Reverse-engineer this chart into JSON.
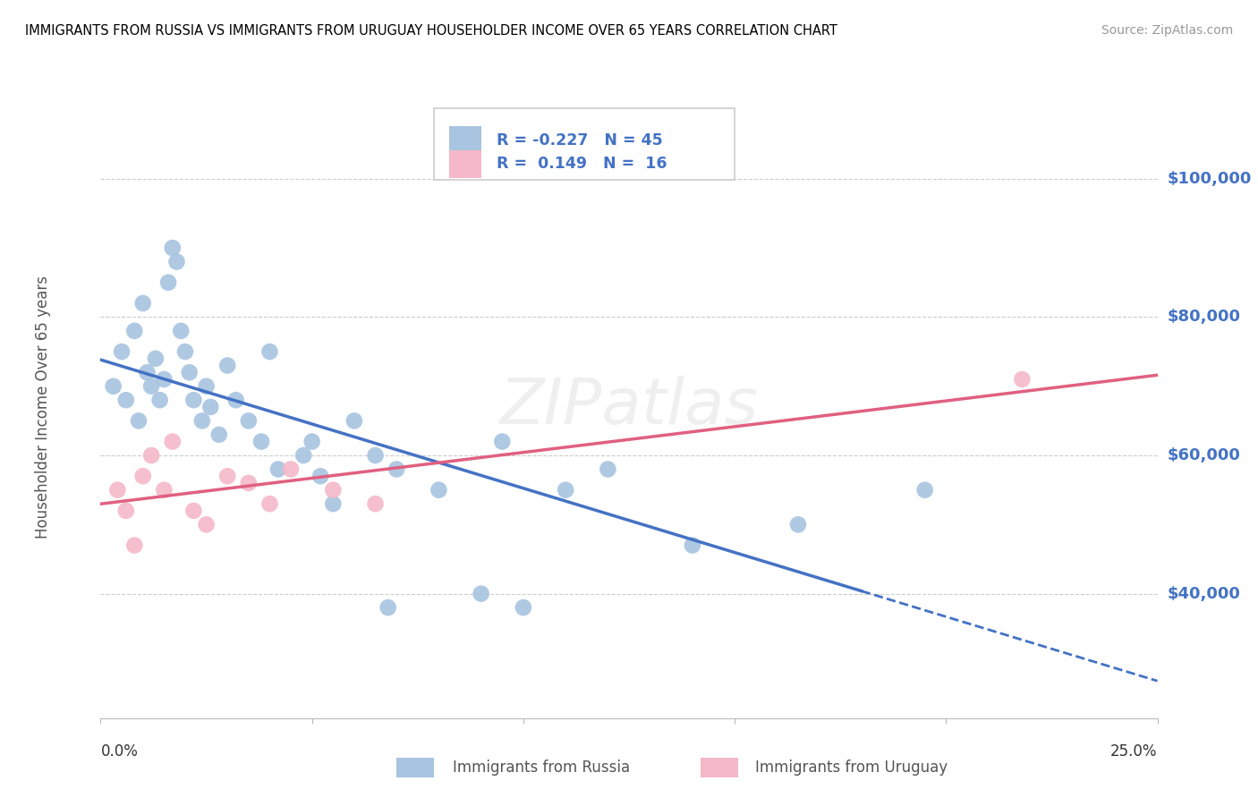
{
  "title": "IMMIGRANTS FROM RUSSIA VS IMMIGRANTS FROM URUGUAY HOUSEHOLDER INCOME OVER 65 YEARS CORRELATION CHART",
  "source": "Source: ZipAtlas.com",
  "ylabel": "Householder Income Over 65 years",
  "legend_label1": "Immigrants from Russia",
  "legend_label2": "Immigrants from Uruguay",
  "R1": "-0.227",
  "N1": "45",
  "R2": "0.149",
  "N2": "16",
  "color_russia": "#a8c4e0",
  "color_uruguay": "#f4b8c8",
  "line_color_russia": "#4472c4",
  "line_color_uruguay": "#e06080",
  "right_label_color": "#4472c4",
  "ytick_labels": [
    "$40,000",
    "$60,000",
    "$80,000",
    "$100,000"
  ],
  "ytick_values": [
    40000,
    60000,
    80000,
    100000
  ],
  "xlim": [
    0.0,
    0.25
  ],
  "ylim": [
    22000,
    112000
  ],
  "russia_x": [
    0.003,
    0.005,
    0.006,
    0.008,
    0.009,
    0.01,
    0.011,
    0.012,
    0.013,
    0.014,
    0.015,
    0.016,
    0.017,
    0.018,
    0.019,
    0.02,
    0.021,
    0.022,
    0.024,
    0.025,
    0.026,
    0.028,
    0.03,
    0.032,
    0.035,
    0.038,
    0.04,
    0.042,
    0.048,
    0.05,
    0.052,
    0.055,
    0.06,
    0.065,
    0.068,
    0.07,
    0.08,
    0.09,
    0.095,
    0.1,
    0.11,
    0.12,
    0.14,
    0.165,
    0.195
  ],
  "russia_y": [
    70000,
    75000,
    68000,
    78000,
    65000,
    82000,
    72000,
    70000,
    74000,
    68000,
    71000,
    85000,
    90000,
    88000,
    78000,
    75000,
    72000,
    68000,
    65000,
    70000,
    67000,
    63000,
    73000,
    68000,
    65000,
    62000,
    75000,
    58000,
    60000,
    62000,
    57000,
    53000,
    65000,
    60000,
    38000,
    58000,
    55000,
    40000,
    62000,
    38000,
    55000,
    58000,
    47000,
    50000,
    55000
  ],
  "uruguay_x": [
    0.004,
    0.006,
    0.008,
    0.01,
    0.012,
    0.015,
    0.017,
    0.022,
    0.025,
    0.03,
    0.035,
    0.04,
    0.045,
    0.055,
    0.065,
    0.218
  ],
  "uruguay_y": [
    55000,
    52000,
    47000,
    57000,
    60000,
    55000,
    62000,
    52000,
    50000,
    57000,
    56000,
    53000,
    58000,
    55000,
    53000,
    71000
  ]
}
